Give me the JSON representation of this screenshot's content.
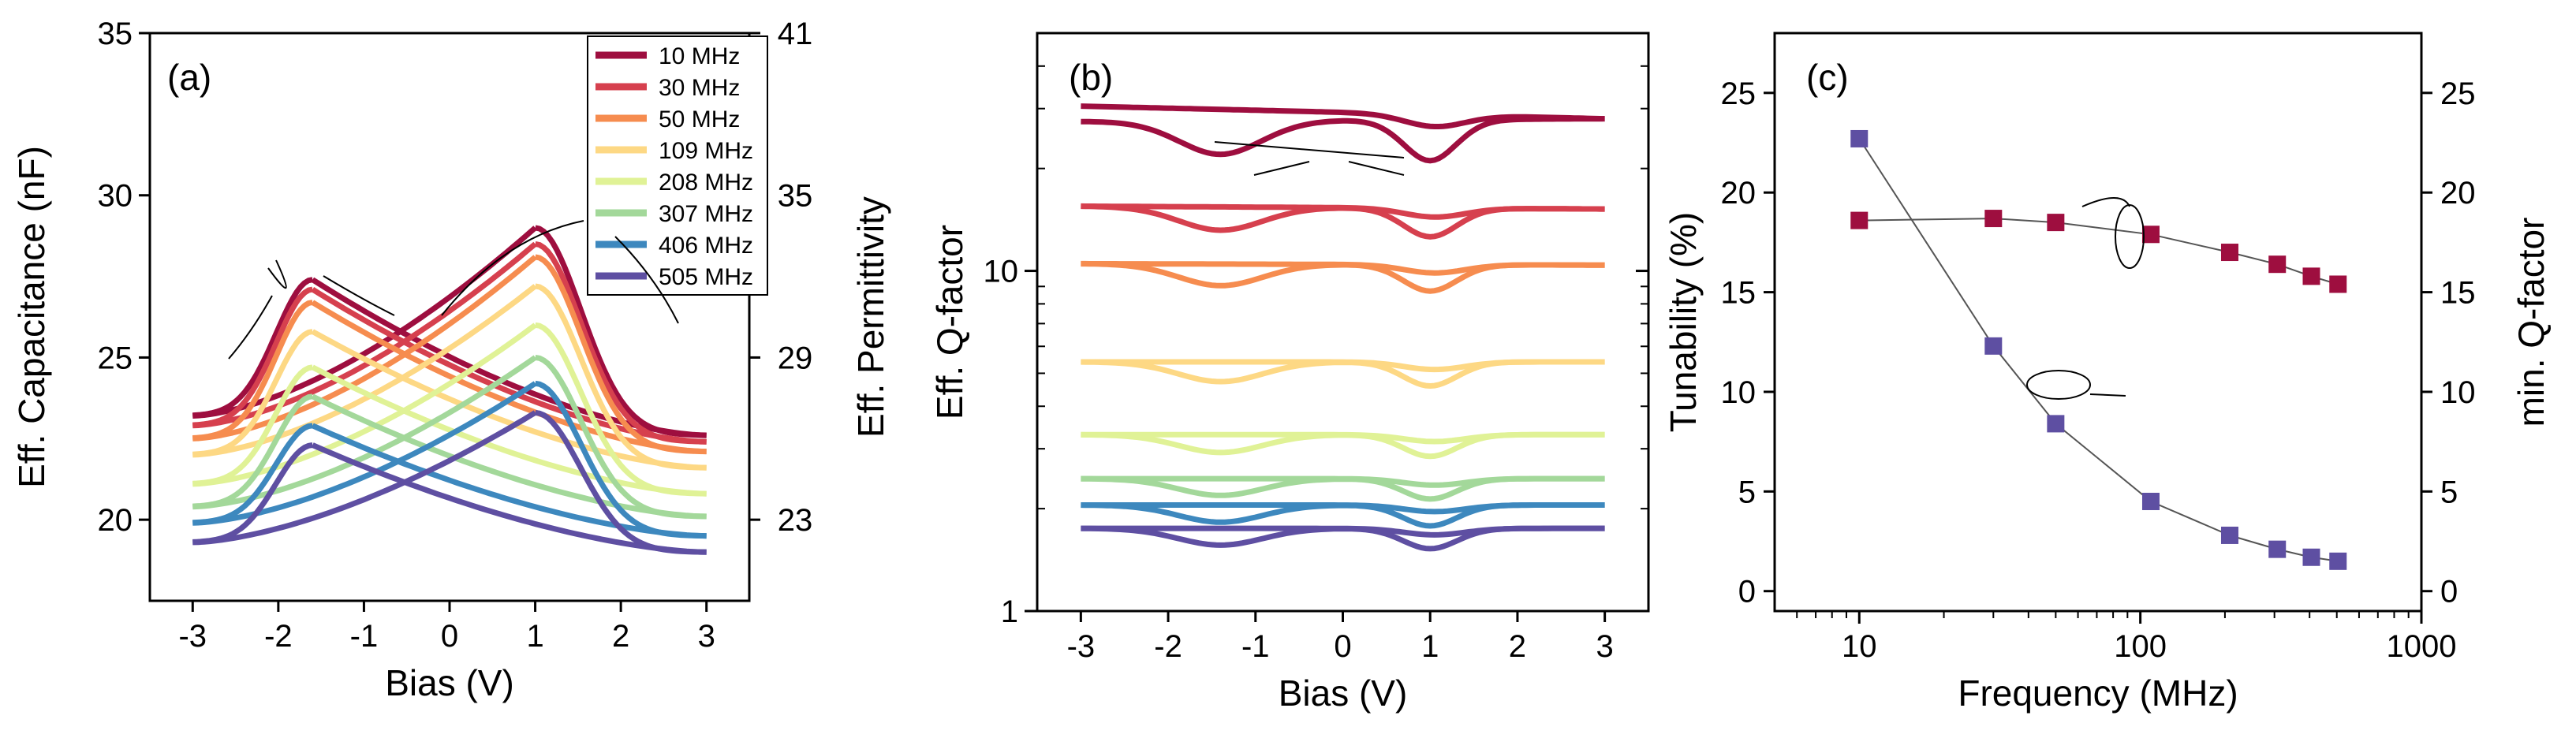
{
  "chart_data": [
    {
      "panel": "(a)",
      "type": "line",
      "xlabel": "Bias (V)",
      "ylabel": "Eff. Capacitance (nF)",
      "y2label": "Eff. Permittivity",
      "xlim": [
        -3.5,
        3.5
      ],
      "ylim": [
        17.5,
        35
      ],
      "xticks": [
        -3,
        -2,
        -1,
        0,
        1,
        2,
        3
      ],
      "yticks": [
        20,
        25,
        30,
        35
      ],
      "y2_tick_labels": [
        {
          "label": "23",
          "at_capacitance": 20
        },
        {
          "label": "29",
          "at_capacitance": 25
        },
        {
          "label": "35",
          "at_capacitance": 30
        },
        {
          "label": "41",
          "at_capacitance": 35
        }
      ],
      "legend_position": "top-right",
      "series": [
        {
          "name": "10 MHz",
          "color": "#9e0e3f",
          "upper_peak_left": 27.4,
          "upper_valley": 24.9,
          "upper_peak_right": 29.0,
          "left_end": 23.2,
          "right_end": 22.6,
          "lower_at_mid": 23.8
        },
        {
          "name": "30 MHz",
          "color": "#d6404e",
          "upper_peak_left": 27.1,
          "upper_valley": 24.7,
          "upper_peak_right": 28.5,
          "left_end": 22.9,
          "right_end": 22.4,
          "lower_at_mid": 23.6
        },
        {
          "name": "50 MHz",
          "color": "#f68c4f",
          "upper_peak_left": 26.7,
          "upper_valley": 24.4,
          "upper_peak_right": 28.1,
          "left_end": 22.5,
          "right_end": 22.1,
          "lower_at_mid": 23.3
        },
        {
          "name": "109 MHz",
          "color": "#fdd884",
          "upper_peak_left": 25.8,
          "upper_valley": 23.8,
          "upper_peak_right": 27.2,
          "left_end": 22.0,
          "right_end": 21.6,
          "lower_at_mid": 22.8
        },
        {
          "name": "208 MHz",
          "color": "#e0f296",
          "upper_peak_left": 24.7,
          "upper_valley": 23.0,
          "upper_peak_right": 26.0,
          "left_end": 21.1,
          "right_end": 20.8,
          "lower_at_mid": 22.0
        },
        {
          "name": "307 MHz",
          "color": "#a3d89a",
          "upper_peak_left": 23.8,
          "upper_valley": 22.3,
          "upper_peak_right": 25.0,
          "left_end": 20.4,
          "right_end": 20.1,
          "lower_at_mid": 21.3
        },
        {
          "name": "406 MHz",
          "color": "#3d88be",
          "upper_peak_left": 22.9,
          "upper_valley": 21.5,
          "upper_peak_right": 24.2,
          "left_end": 19.9,
          "right_end": 19.5,
          "lower_at_mid": 20.7
        },
        {
          "name": "505 MHz",
          "color": "#5e4fa2",
          "upper_peak_left": 22.3,
          "upper_valley": 20.9,
          "upper_peak_right": 23.3,
          "left_end": 19.3,
          "right_end": 19.0,
          "lower_at_mid": 20.2
        }
      ]
    },
    {
      "panel": "(b)",
      "type": "line",
      "xlabel": "Bias (V)",
      "ylabel": "Eff. Q-factor",
      "yscale": "log",
      "xlim": [
        -3.5,
        3.5
      ],
      "ylim": [
        1,
        50
      ],
      "xticks": [
        -3,
        -2,
        -1,
        0,
        1,
        2,
        3
      ],
      "yticks": [
        1,
        10
      ],
      "series": [
        {
          "name": "10 MHz",
          "color": "#9e0e3f",
          "left_top": 30.5,
          "left_bottom": 27.5,
          "dip": 23.0,
          "right": 28.0
        },
        {
          "name": "30 MHz",
          "color": "#d6404e",
          "left_top": 15.5,
          "left_bottom": 15.5,
          "dip": 12.5,
          "right": 15.2
        },
        {
          "name": "50 MHz",
          "color": "#f68c4f",
          "left_top": 10.5,
          "left_bottom": 10.5,
          "dip": 8.6,
          "right": 10.4
        },
        {
          "name": "109 MHz",
          "color": "#fdd884",
          "left_top": 5.4,
          "left_bottom": 5.4,
          "dip": 4.5,
          "right": 5.4
        },
        {
          "name": "208 MHz",
          "color": "#e0f296",
          "left_top": 3.3,
          "left_bottom": 3.3,
          "dip": 2.8,
          "right": 3.3
        },
        {
          "name": "307 MHz",
          "color": "#a3d89a",
          "left_top": 2.45,
          "left_bottom": 2.45,
          "dip": 2.1,
          "right": 2.45
        },
        {
          "name": "406 MHz",
          "color": "#3d88be",
          "left_top": 2.05,
          "left_bottom": 2.05,
          "dip": 1.75,
          "right": 2.05
        },
        {
          "name": "505 MHz",
          "color": "#5e4fa2",
          "left_top": 1.75,
          "left_bottom": 1.75,
          "dip": 1.5,
          "right": 1.75
        }
      ]
    },
    {
      "panel": "(c)",
      "type": "scatter",
      "xlabel": "Frequency (MHz)",
      "ylabel": "Tunability (%)",
      "y2label": "min. Q-factor",
      "xscale": "log",
      "xlim": [
        5,
        1000
      ],
      "ylim": [
        -1,
        28
      ],
      "xticks": [
        10,
        100,
        1000
      ],
      "yticks": [
        0,
        5,
        10,
        15,
        20,
        25
      ],
      "y2ticks": [
        0,
        5,
        10,
        15,
        20,
        25
      ],
      "x": [
        10,
        30,
        50,
        109,
        208,
        307,
        406,
        505
      ],
      "series": [
        {
          "axis": "left",
          "color": "#9e0e3f",
          "values": [
            18.6,
            18.7,
            18.5,
            17.9,
            17.0,
            16.4,
            15.8,
            15.4
          ]
        },
        {
          "axis": "right",
          "color": "#5e4fa2",
          "values": [
            22.7,
            12.3,
            8.4,
            4.5,
            2.8,
            2.1,
            1.7,
            1.5
          ]
        }
      ]
    }
  ]
}
